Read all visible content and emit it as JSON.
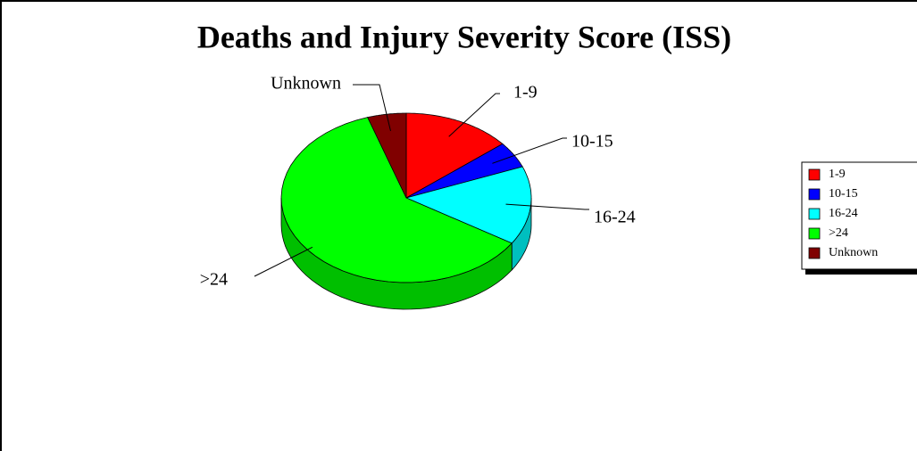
{
  "chart_data": {
    "type": "pie3d",
    "title": "Deaths and Injury Severity Score (ISS)",
    "categories": [
      "1-9",
      "10-15",
      "16-24",
      ">24",
      "Unknown"
    ],
    "values": [
      14,
      5,
      15,
      61,
      5
    ],
    "colors": [
      "#ff0000",
      "#0000ff",
      "#00ffff",
      "#00ff00",
      "#800000"
    ],
    "legend": "right"
  }
}
